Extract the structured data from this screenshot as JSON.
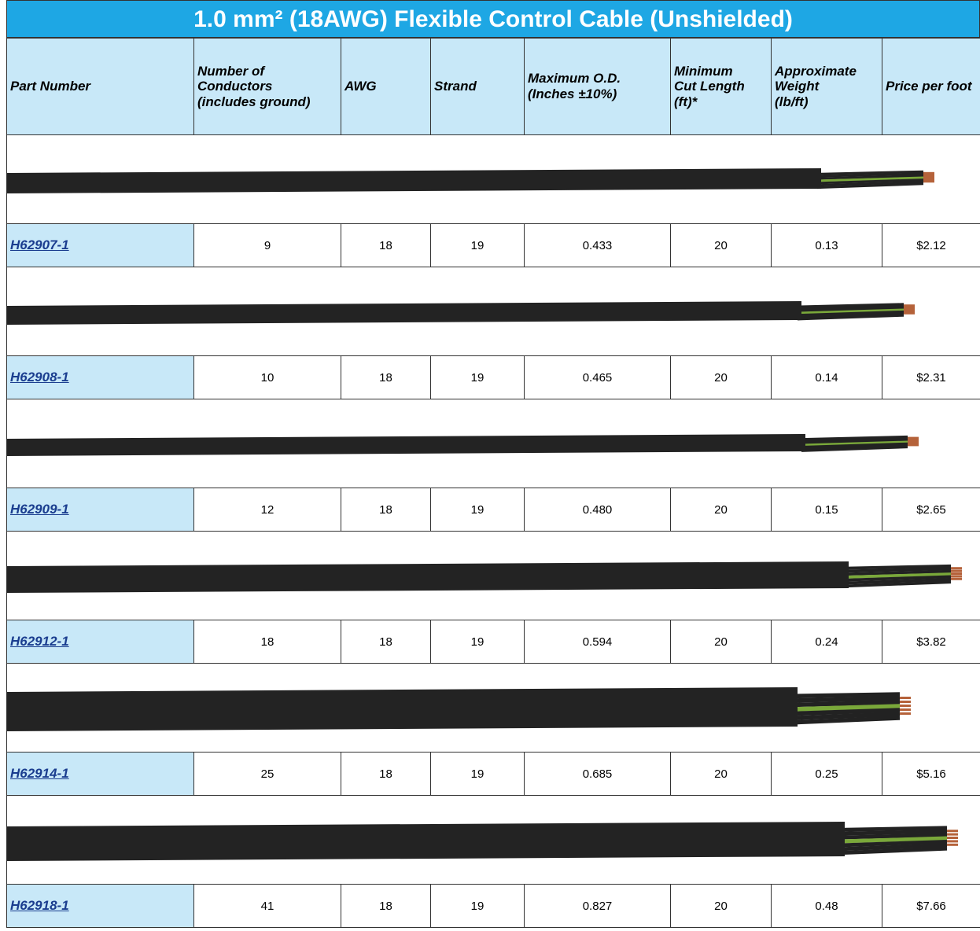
{
  "title": "1.0 mm² (18AWG) Flexible Control Cable (Unshielded)",
  "header": [
    [
      "Part Number"
    ],
    [
      "Number of",
      "Conductors",
      "(includes ground)"
    ],
    [
      "AWG"
    ],
    [
      "Strand"
    ],
    [
      "Maximum O.D.",
      "(Inches ±10%)"
    ],
    [
      "Minimum",
      "Cut Length",
      "(ft)*"
    ],
    [
      "Approximate",
      "Weight",
      "(lb/ft)"
    ],
    [
      "Price per foot"
    ]
  ],
  "rows": [
    [
      "H62907-1",
      "9",
      "18",
      "19",
      "0.433",
      "20",
      "0.13",
      "$2.12"
    ],
    [
      "H62908-1",
      "10",
      "18",
      "19",
      "0.465",
      "20",
      "0.14",
      "$2.31"
    ],
    [
      "H62909-1",
      "12",
      "18",
      "19",
      "0.480",
      "20",
      "0.15",
      "$2.65"
    ],
    [
      "H62912-1",
      "18",
      "18",
      "19",
      "0.594",
      "20",
      "0.24",
      "$3.82"
    ],
    [
      "H62914-1",
      "25",
      "18",
      "19",
      "0.685",
      "20",
      "0.25",
      "$5.16"
    ],
    [
      "H62918-1",
      "41",
      "18",
      "19",
      "0.827",
      "20",
      "0.48",
      "$7.66"
    ]
  ]
}
